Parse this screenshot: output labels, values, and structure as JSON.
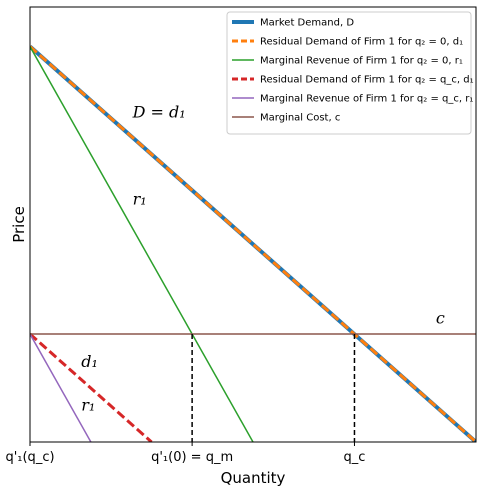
{
  "chart_data": {
    "type": "line",
    "xlabel": "Quantity",
    "ylabel": "Price",
    "xlim": [
      0,
      2
    ],
    "ylim": [
      0,
      1.1
    ],
    "grid": false,
    "legend_position": "top-right",
    "x_ticks": [
      {
        "x": 0,
        "label": "q'₁(q_c)"
      },
      {
        "x": 0.727,
        "label": "q'₁(0) = q_m"
      },
      {
        "x": 1.455,
        "label": "q_c"
      }
    ],
    "series": [
      {
        "name": "Market Demand, D",
        "color": "#1f77b4",
        "style": "solid",
        "width": 4,
        "x": [
          0,
          2
        ],
        "y": [
          1,
          0
        ]
      },
      {
        "name": "Residual Demand of Firm 1 for q₂ = 0, d₁",
        "color": "#ff7f0e",
        "style": "dashed",
        "width": 3,
        "x": [
          0,
          2
        ],
        "y": [
          1,
          0
        ]
      },
      {
        "name": "Marginal Revenue of Firm 1 for q₂ = 0, r₁",
        "color": "#2ca02c",
        "style": "solid",
        "width": 1.5,
        "x": [
          0,
          1
        ],
        "y": [
          1,
          0
        ]
      },
      {
        "name": "Residual Demand of Firm 1 for q₂ = q_c, d₁",
        "color": "#d62728",
        "style": "dashed",
        "width": 3,
        "x": [
          0,
          0.545
        ],
        "y": [
          0.273,
          0
        ]
      },
      {
        "name": "Marginal Revenue of Firm 1 for q₂ = q_c, r₁",
        "color": "#9467bd",
        "style": "solid",
        "width": 1.5,
        "x": [
          0,
          0.273
        ],
        "y": [
          0.273,
          0
        ]
      },
      {
        "name": "Marginal Cost, c",
        "color": "#8c564b",
        "style": "solid",
        "width": 1.5,
        "x": [
          0,
          2
        ],
        "y": [
          0.273,
          0.273
        ]
      }
    ],
    "guide_lines": [
      {
        "x": 0.727,
        "y_top": 0.273
      },
      {
        "x": 1.455,
        "y_top": 0.273
      }
    ],
    "annotations": [
      {
        "text": "D = d₁",
        "x": 0.46,
        "y": 0.82
      },
      {
        "text": "r₁",
        "x": 0.46,
        "y": 0.6
      },
      {
        "text": "c",
        "x": 1.82,
        "y": 0.3
      },
      {
        "text": "d₁",
        "x": 0.23,
        "y": 0.19
      },
      {
        "text": "r₁",
        "x": 0.23,
        "y": 0.08
      }
    ]
  }
}
